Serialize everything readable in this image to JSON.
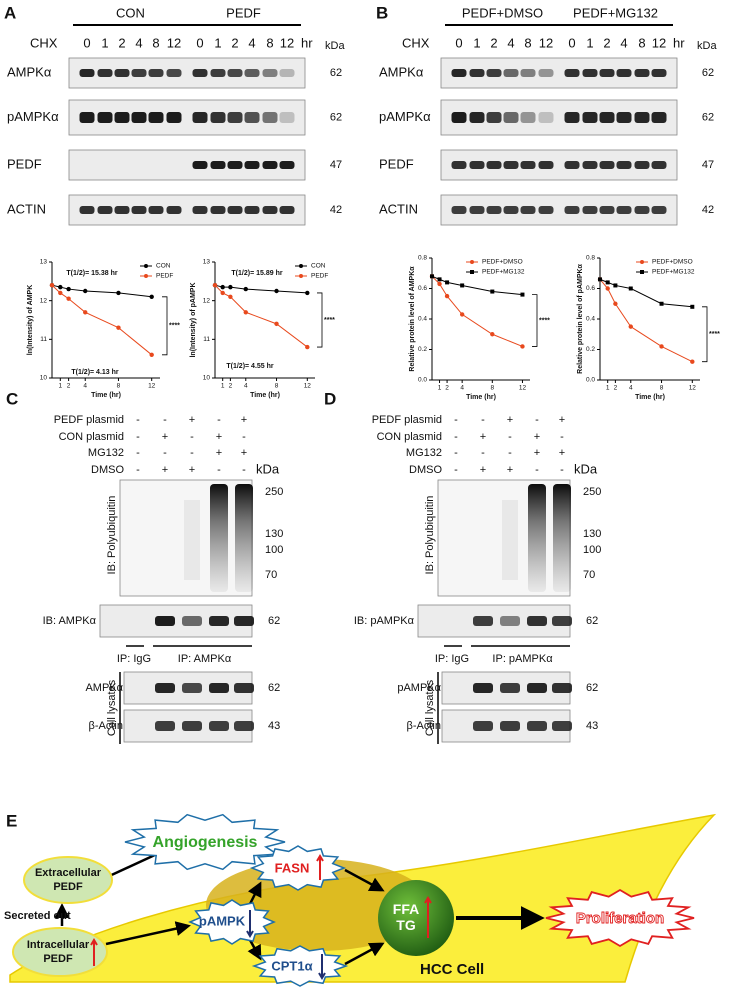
{
  "panel_a": {
    "label": "A",
    "groups": [
      "CON",
      "PEDF"
    ],
    "treatment": "CHX",
    "times": [
      "0",
      "1",
      "2",
      "4",
      "8",
      "12",
      "0",
      "1",
      "2",
      "4",
      "8",
      "12"
    ],
    "time_unit": "hr",
    "kda_header": "kDa",
    "rows": [
      {
        "name": "AMPKα",
        "kda": 62
      },
      {
        "name": "pAMPKα",
        "kda": 62
      },
      {
        "name": "PEDF",
        "kda": 47
      },
      {
        "name": "ACTIN",
        "kda": 42
      }
    ]
  },
  "panel_b": {
    "label": "B",
    "groups": [
      "PEDF+DMSO",
      "PEDF+MG132"
    ],
    "treatment": "CHX",
    "times": [
      "0",
      "1",
      "2",
      "4",
      "8",
      "12",
      "0",
      "1",
      "2",
      "4",
      "8",
      "12"
    ],
    "time_unit": "hr",
    "kda_header": "kDa",
    "rows": [
      {
        "name": "AMPKα",
        "kda": 62
      },
      {
        "name": "pAMPKα",
        "kda": 62
      },
      {
        "name": "PEDF",
        "kda": 47
      },
      {
        "name": "ACTIN",
        "kda": 42
      }
    ]
  },
  "chart_data": [
    {
      "type": "line",
      "y_label": "ln(Intensity) of AMPK",
      "x_label": "Time (hr)",
      "x": [
        0,
        1,
        2,
        4,
        8,
        12
      ],
      "xlim": [
        0,
        13
      ],
      "xticks": [
        1,
        2,
        4,
        8,
        12
      ],
      "ylim": [
        10,
        13
      ],
      "yticks": [
        10,
        11,
        12,
        13
      ],
      "legend": "upper right",
      "series": [
        {
          "name": "CON",
          "color": "#000000",
          "marker": "circle",
          "values": [
            12.4,
            12.35,
            12.3,
            12.25,
            12.2,
            12.1
          ]
        },
        {
          "name": "PEDF",
          "color": "#e8491d",
          "marker": "circle",
          "values": [
            12.4,
            12.2,
            12.05,
            11.7,
            11.3,
            10.6
          ]
        }
      ],
      "annotations": [
        "T(1/2)= 15.38 hr",
        "T(1/2)= 4.13 hr",
        "****"
      ]
    },
    {
      "type": "line",
      "y_label": "ln(Intensity) of pAMPK",
      "x_label": "Time (hr)",
      "x": [
        0,
        1,
        2,
        4,
        8,
        12
      ],
      "xlim": [
        0,
        13
      ],
      "xticks": [
        1,
        2,
        4,
        8,
        12
      ],
      "ylim": [
        10,
        13
      ],
      "yticks": [
        10,
        11,
        12,
        13
      ],
      "legend": "upper right",
      "series": [
        {
          "name": "CON",
          "color": "#000000",
          "marker": "circle",
          "values": [
            12.4,
            12.35,
            12.35,
            12.3,
            12.25,
            12.2
          ]
        },
        {
          "name": "PEDF",
          "color": "#e8491d",
          "marker": "circle",
          "values": [
            12.4,
            12.2,
            12.1,
            11.7,
            11.4,
            10.8
          ]
        }
      ],
      "annotations": [
        "T(1/2)= 15.89 hr",
        "T(1/2)= 4.55 hr",
        "****"
      ]
    },
    {
      "type": "line",
      "y_label": "Relative protein level of AMPKα",
      "x_label": "Time (hr)",
      "x": [
        0,
        1,
        2,
        4,
        8,
        12
      ],
      "xlim": [
        0,
        13
      ],
      "xticks": [
        1,
        2,
        4,
        8,
        12
      ],
      "ylim": [
        0,
        0.8
      ],
      "yticks": [
        {
          "value": 0,
          "label": "0.0"
        },
        0.2,
        0.4,
        0.6,
        0.8
      ],
      "legend": "upper right",
      "series": [
        {
          "name": "PEDF+DMSO",
          "color": "#e8491d",
          "marker": "circle",
          "values": [
            0.68,
            0.63,
            0.55,
            0.43,
            0.3,
            0.22
          ]
        },
        {
          "name": "PEDF+MG132",
          "color": "#000000",
          "marker": "square",
          "values": [
            0.68,
            0.66,
            0.64,
            0.62,
            0.58,
            0.56
          ]
        }
      ],
      "annotations": [
        "****"
      ]
    },
    {
      "type": "line",
      "y_label": "Relative protein level of pAMPKα",
      "x_label": "Time (hr)",
      "x": [
        0,
        1,
        2,
        4,
        8,
        12
      ],
      "xlim": [
        0,
        13
      ],
      "xticks": [
        1,
        2,
        4,
        8,
        12
      ],
      "ylim": [
        0,
        0.8
      ],
      "yticks": [
        {
          "value": 0,
          "label": "0.0"
        },
        0.2,
        0.4,
        0.6,
        0.8
      ],
      "legend": "upper right",
      "series": [
        {
          "name": "PEDF+DMSO",
          "color": "#e8491d",
          "marker": "circle",
          "values": [
            0.66,
            0.6,
            0.5,
            0.35,
            0.22,
            0.12
          ]
        },
        {
          "name": "PEDF+MG132",
          "color": "#000000",
          "marker": "square",
          "values": [
            0.66,
            0.64,
            0.62,
            0.6,
            0.5,
            0.48
          ]
        }
      ],
      "annotations": [
        "****"
      ]
    }
  ],
  "panel_c": {
    "label": "C",
    "conditions": [
      {
        "name": "PEDF plasmid",
        "signs": [
          "-",
          "-",
          "+",
          "-",
          "+"
        ]
      },
      {
        "name": "CON plasmid",
        "signs": [
          "-",
          "+",
          "-",
          "+",
          "-"
        ]
      },
      {
        "name": "MG132",
        "signs": [
          "-",
          "-",
          "-",
          "+",
          "+"
        ]
      },
      {
        "name": "DMSO",
        "signs": [
          "-",
          "+",
          "+",
          "-",
          "-"
        ]
      }
    ],
    "kda_header": "kDa",
    "markers": [
      "250",
      "130",
      "100",
      "70"
    ],
    "ib_main": "IB: Polyubiquitin",
    "ib_row": {
      "name": "IB: AMPKα",
      "kda": 62
    },
    "ip_control": "IP: IgG",
    "ip_target": "IP: AMPKα",
    "lysates_label": "Cell lysates",
    "lysates": [
      {
        "name": "AMPKα",
        "kda": 62
      },
      {
        "name": "β-Actin",
        "kda": 43
      }
    ]
  },
  "panel_d": {
    "label": "D",
    "conditions": [
      {
        "name": "PEDF plasmid",
        "signs": [
          "-",
          "-",
          "+",
          "-",
          "+"
        ]
      },
      {
        "name": "CON plasmid",
        "signs": [
          "-",
          "+",
          "-",
          "+",
          "-"
        ]
      },
      {
        "name": "MG132",
        "signs": [
          "-",
          "-",
          "-",
          "+",
          "+"
        ]
      },
      {
        "name": "DMSO",
        "signs": [
          "-",
          "+",
          "+",
          "-",
          "-"
        ]
      }
    ],
    "kda_header": "kDa",
    "markers": [
      "250",
      "130",
      "100",
      "70"
    ],
    "ib_main": "IB: Polyubiquitin",
    "ib_row": {
      "name": "IB: pAMPKα",
      "kda": 62
    },
    "ip_control": "IP: IgG",
    "ip_target": "IP: pAMPKα",
    "lysates_label": "Cell lysates",
    "lysates": [
      {
        "name": "pAMPKα",
        "kda": 62
      },
      {
        "name": "β-Actin",
        "kda": 43
      }
    ]
  },
  "panel_e": {
    "label": "E",
    "angiogenesis": "Angiogenesis",
    "extracellular": [
      "Extracellular",
      "PEDF"
    ],
    "secreted": "Secreted out",
    "intracellular": [
      "Intracellular",
      "PEDF"
    ],
    "pampk": "pAMPK",
    "fasn": "FASN",
    "cpt1": "CPT1α",
    "ffa_tg": [
      "FFA",
      "TG"
    ],
    "cell": "HCC Cell",
    "proliferation": "Proliferation"
  }
}
